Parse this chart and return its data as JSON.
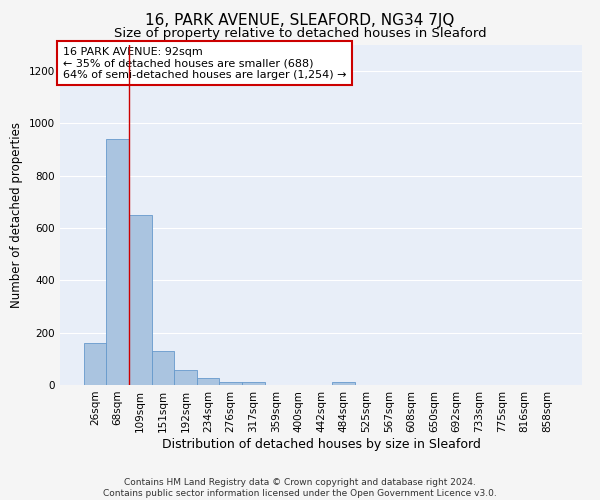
{
  "title": "16, PARK AVENUE, SLEAFORD, NG34 7JQ",
  "subtitle": "Size of property relative to detached houses in Sleaford",
  "xlabel": "Distribution of detached houses by size in Sleaford",
  "ylabel": "Number of detached properties",
  "categories": [
    "26sqm",
    "68sqm",
    "109sqm",
    "151sqm",
    "192sqm",
    "234sqm",
    "276sqm",
    "317sqm",
    "359sqm",
    "400sqm",
    "442sqm",
    "484sqm",
    "525sqm",
    "567sqm",
    "608sqm",
    "650sqm",
    "692sqm",
    "733sqm",
    "775sqm",
    "816sqm",
    "858sqm"
  ],
  "values": [
    160,
    940,
    650,
    130,
    57,
    25,
    12,
    11,
    0,
    0,
    0,
    12,
    0,
    0,
    0,
    0,
    0,
    0,
    0,
    0,
    0
  ],
  "bar_color": "#aac4e0",
  "bar_edge_color": "#6699cc",
  "background_color": "#e8eef8",
  "grid_color": "#ffffff",
  "annotation_box_text": "16 PARK AVENUE: 92sqm\n← 35% of detached houses are smaller (688)\n64% of semi-detached houses are larger (1,254) →",
  "annotation_box_color": "#ffffff",
  "annotation_box_edge_color": "#cc0000",
  "red_line_x": 1.5,
  "ylim": [
    0,
    1300
  ],
  "yticks": [
    0,
    200,
    400,
    600,
    800,
    1000,
    1200
  ],
  "footnote": "Contains HM Land Registry data © Crown copyright and database right 2024.\nContains public sector information licensed under the Open Government Licence v3.0.",
  "title_fontsize": 11,
  "subtitle_fontsize": 9.5,
  "xlabel_fontsize": 9,
  "ylabel_fontsize": 8.5,
  "tick_fontsize": 7.5,
  "footnote_fontsize": 6.5,
  "annotation_fontsize": 8
}
